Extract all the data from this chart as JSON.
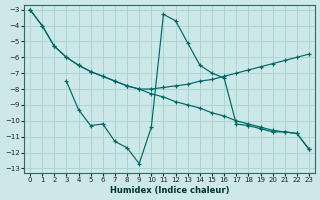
{
  "xlabel": "Humidex (Indice chaleur)",
  "background_color": "#cce8e8",
  "grid_color": "#aad4d4",
  "line_color": "#006666",
  "xlim": [
    0,
    23
  ],
  "ylim": [
    -13,
    -3
  ],
  "xticks": [
    0,
    1,
    2,
    3,
    4,
    5,
    6,
    7,
    8,
    9,
    10,
    11,
    12,
    13,
    14,
    15,
    16,
    17,
    18,
    19,
    20,
    21,
    22,
    23
  ],
  "yticks": [
    -13,
    -12,
    -11,
    -10,
    -9,
    -8,
    -7,
    -6,
    -5,
    -4,
    -3
  ],
  "series": [
    {
      "x": [
        0,
        1,
        2,
        3,
        4,
        5,
        6,
        7,
        8,
        9,
        10,
        11,
        12,
        13,
        14,
        15,
        16,
        17,
        18,
        19,
        20,
        21,
        22,
        23
      ],
      "y": [
        -3.0,
        -4.0,
        -5.3,
        -6.0,
        -6.5,
        -6.9,
        -7.2,
        -7.5,
        -7.8,
        -8.0,
        -8.3,
        -8.5,
        -8.8,
        -9.0,
        -9.2,
        -9.5,
        -9.7,
        -10.0,
        -10.2,
        -10.4,
        -10.6,
        -10.7,
        -10.8,
        -11.8
      ]
    },
    {
      "x": [
        0,
        1,
        2,
        3,
        4,
        5,
        6,
        7,
        8,
        9,
        10,
        11,
        12,
        13,
        14,
        15,
        16,
        17,
        18,
        19,
        20,
        21,
        22,
        23
      ],
      "y": [
        -3.0,
        -4.0,
        -5.3,
        -6.0,
        -6.5,
        -6.9,
        -7.2,
        -7.5,
        -7.8,
        -8.0,
        -8.0,
        -7.9,
        -7.8,
        -7.7,
        -7.5,
        -7.4,
        -7.2,
        -7.0,
        -6.8,
        -6.6,
        -6.4,
        -6.2,
        -6.0,
        -5.8
      ]
    },
    {
      "x": [
        3,
        4,
        5,
        6,
        7,
        8,
        9,
        10,
        11,
        12,
        13,
        14,
        15,
        16,
        17,
        18,
        19,
        20,
        21,
        22,
        23
      ],
      "y": [
        -7.5,
        -9.3,
        -10.3,
        -10.2,
        -11.3,
        -11.7,
        -12.7,
        -10.4,
        -3.3,
        -3.7,
        -5.1,
        -6.5,
        -7.0,
        -7.3,
        -10.2,
        -10.3,
        -10.5,
        -10.7,
        -10.7,
        -10.8,
        -11.8
      ]
    }
  ]
}
